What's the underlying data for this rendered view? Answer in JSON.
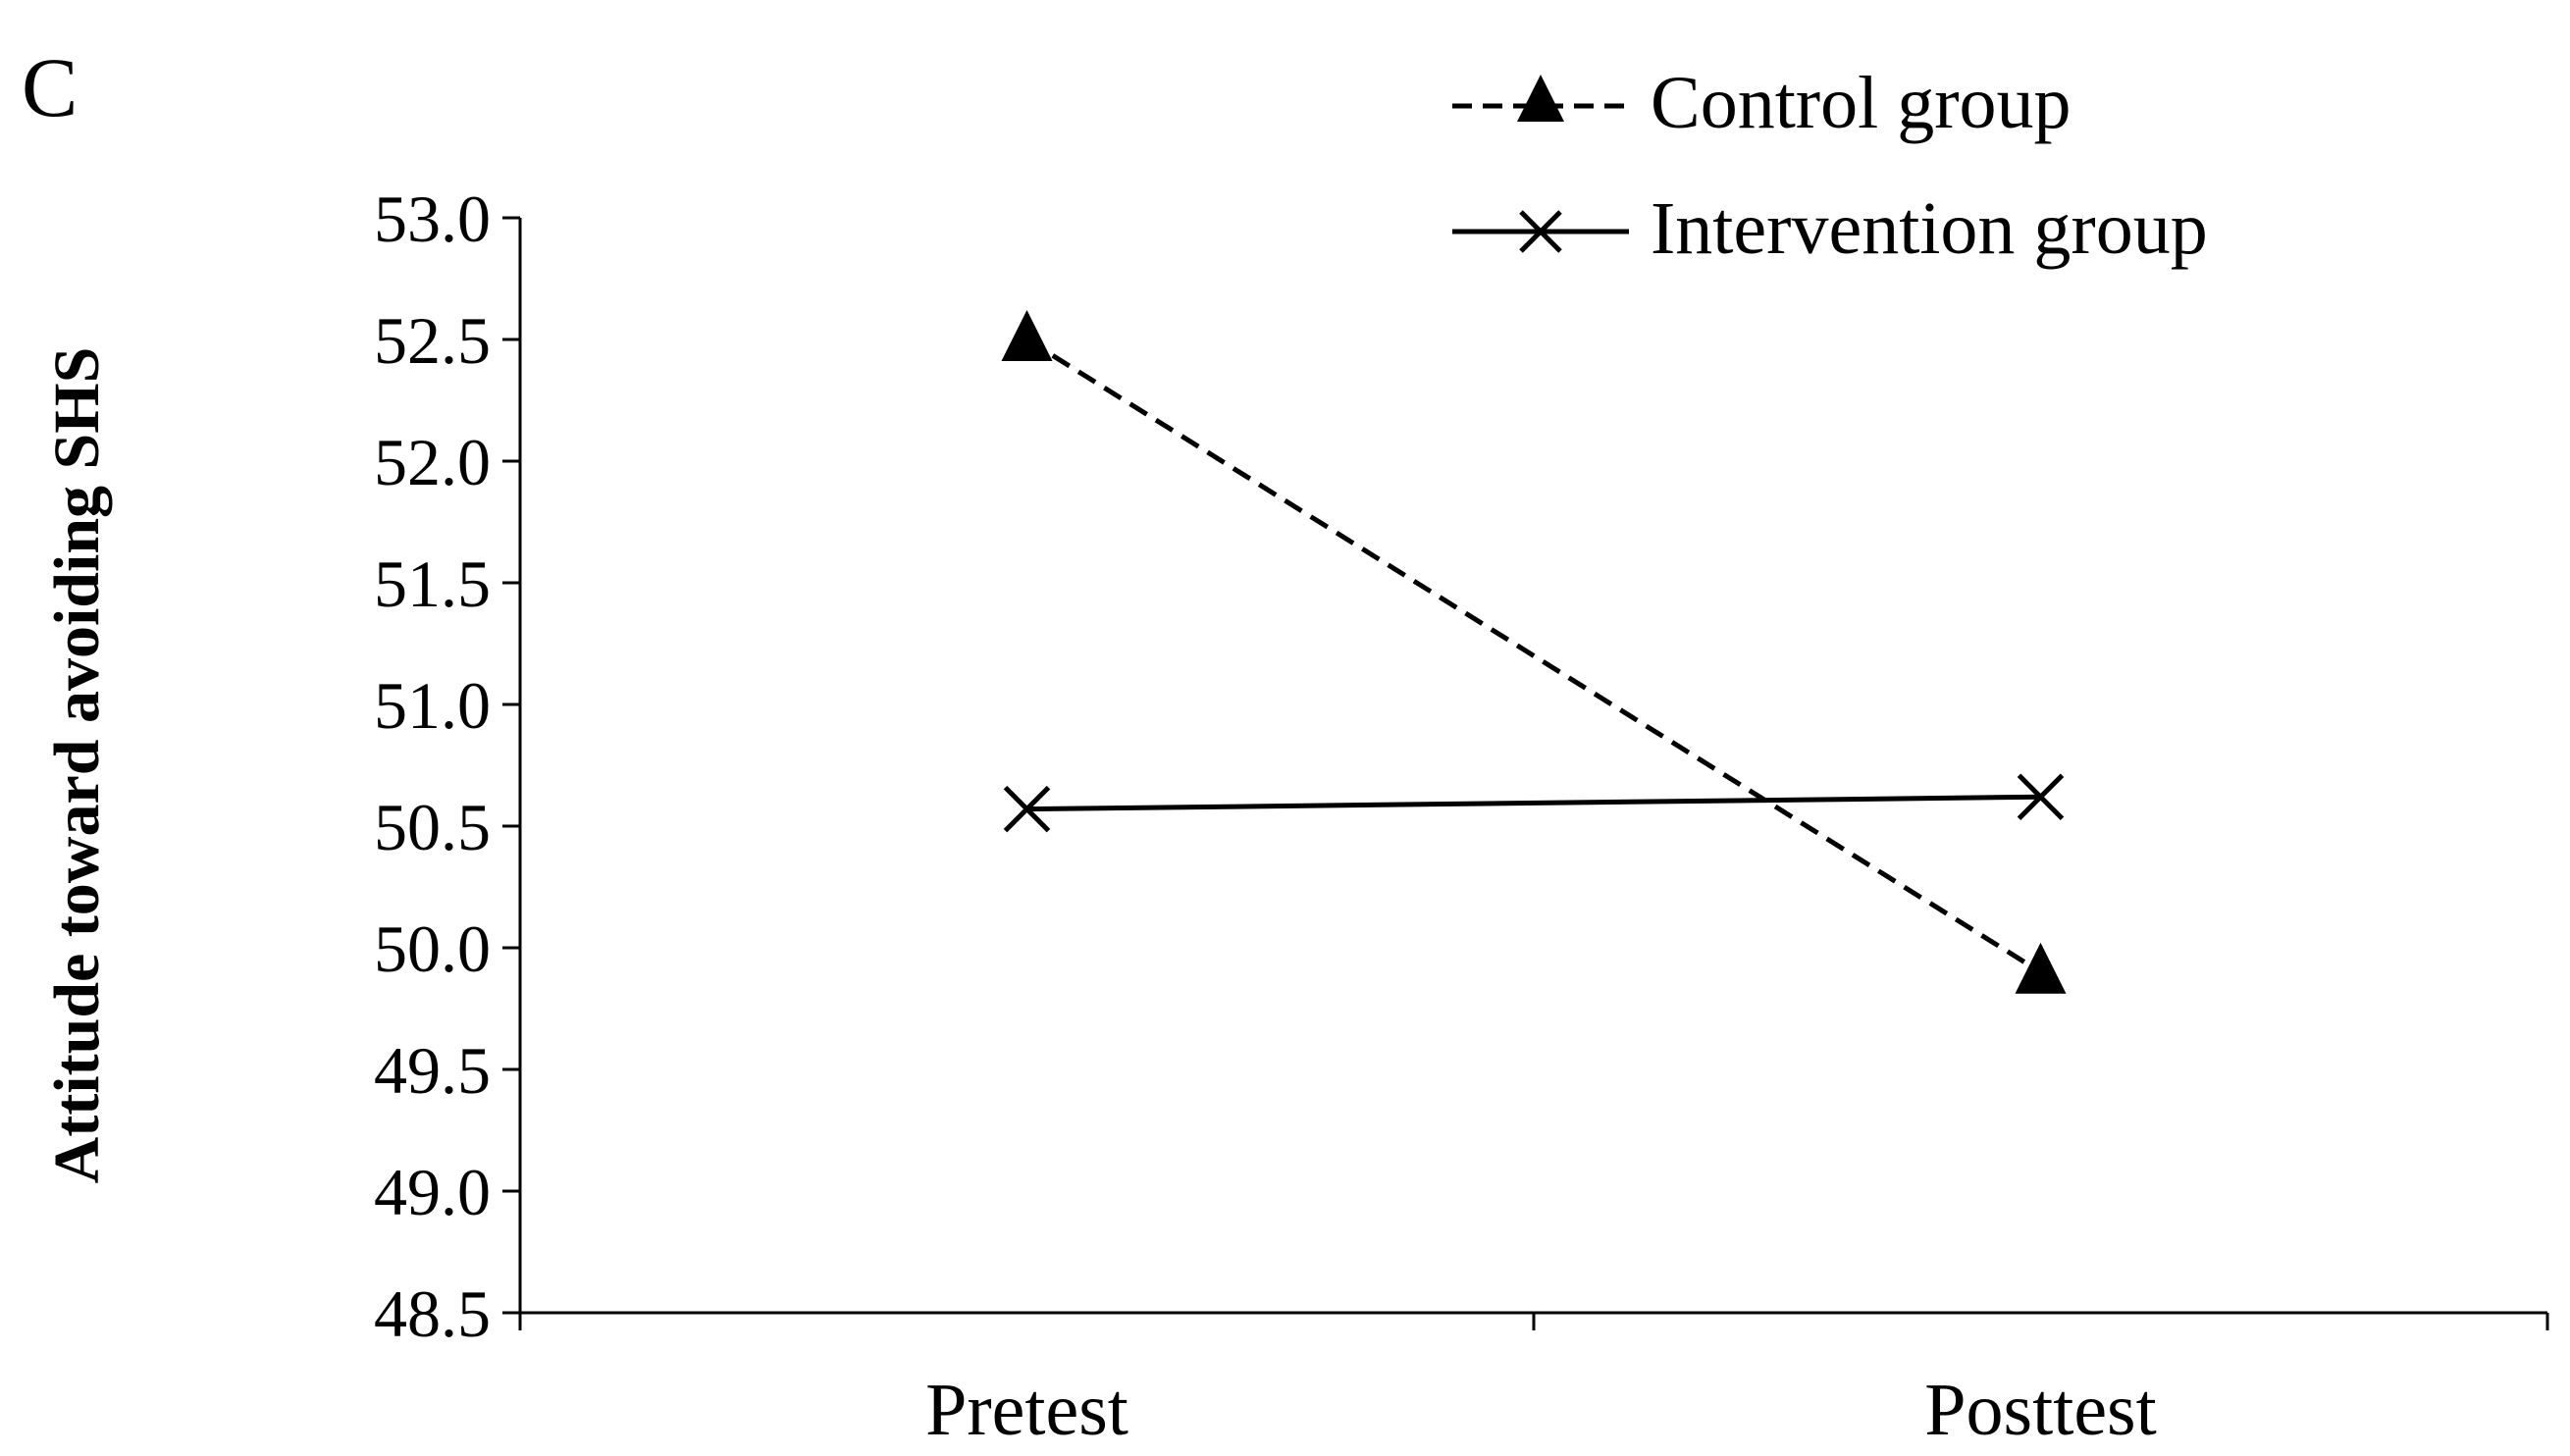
{
  "panel_label": "C",
  "chart_data": {
    "type": "line",
    "title": "",
    "xlabel": "",
    "ylabel": "Attitude toward avoiding SHS",
    "categories": [
      "Pretest",
      "Posttest"
    ],
    "ylim": [
      48.5,
      53.0
    ],
    "yticks": [
      "48.5",
      "49.0",
      "49.5",
      "50.0",
      "50.5",
      "51.0",
      "51.5",
      "52.0",
      "52.5",
      "53.0"
    ],
    "grid": false,
    "legend_position": "top-right",
    "series": [
      {
        "name": "Control group",
        "values": [
          52.5,
          49.9
        ],
        "line_style": "dashed",
        "marker": "triangle",
        "color": "#000000"
      },
      {
        "name": "Intervention group",
        "values": [
          50.57,
          50.62
        ],
        "line_style": "solid",
        "marker": "x",
        "color": "#000000"
      }
    ]
  }
}
